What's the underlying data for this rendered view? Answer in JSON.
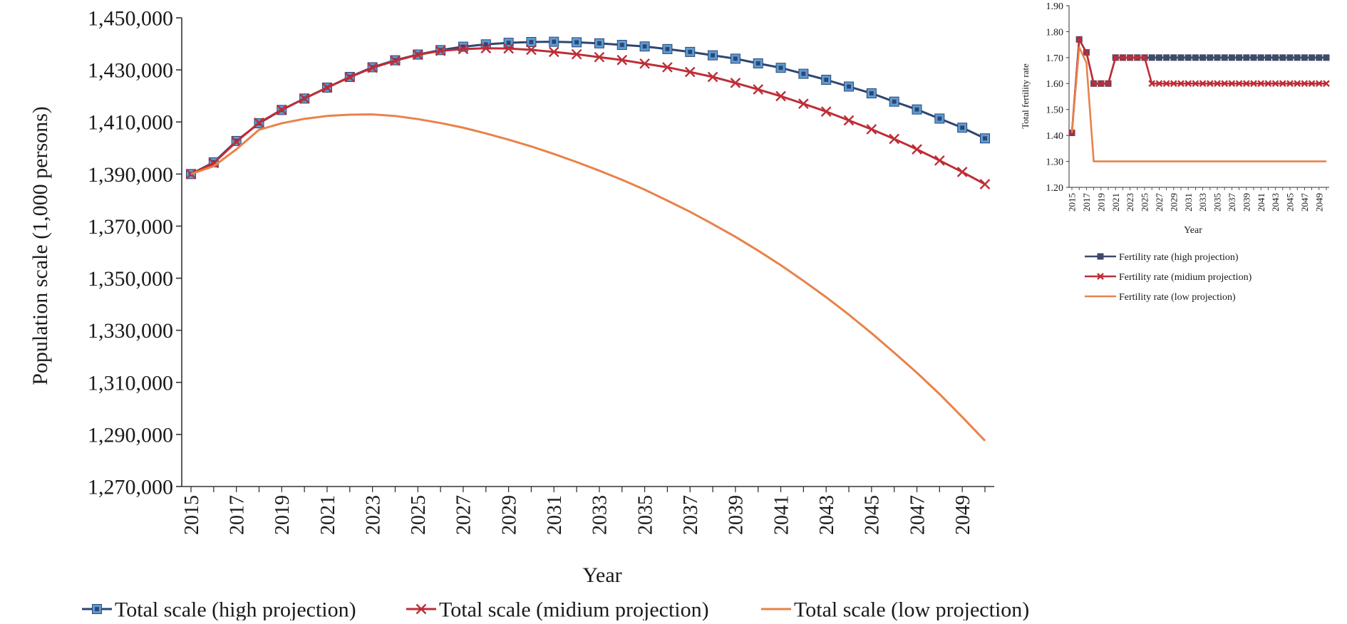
{
  "chart_data": [
    {
      "type": "line",
      "title": "",
      "xlabel": "Year",
      "ylabel": "Population scale (1,000 persons)",
      "ylim": [
        1270000,
        1450000
      ],
      "y_ticks": [
        "1,270,000",
        "1,290,000",
        "1,310,000",
        "1,330,000",
        "1,350,000",
        "1,370,000",
        "1,390,000",
        "1,410,000",
        "1,430,000",
        "1,450,000"
      ],
      "x_tick_labels": [
        "2015",
        "2017",
        "2019",
        "2021",
        "2023",
        "2025",
        "2027",
        "2029",
        "2031",
        "2033",
        "2035",
        "2037",
        "2039",
        "2041",
        "2043",
        "2045",
        "2047",
        "2049"
      ],
      "x": [
        2015,
        2016,
        2017,
        2018,
        2019,
        2020,
        2021,
        2022,
        2023,
        2024,
        2025,
        2026,
        2027,
        2028,
        2029,
        2030,
        2031,
        2032,
        2033,
        2034,
        2035,
        2036,
        2037,
        2038,
        2039,
        2040,
        2041,
        2042,
        2043,
        2044,
        2045,
        2046,
        2047,
        2048,
        2049,
        2050
      ],
      "legend_position": "bottom",
      "grid": false,
      "series": [
        {
          "name": "Total scale (high projection)",
          "color": "#2f4670",
          "marker_color": "#5b9bd5",
          "marker": "square",
          "values": [
            1390000,
            1394500,
            1402700,
            1409500,
            1414600,
            1419000,
            1423200,
            1427300,
            1431000,
            1433700,
            1435900,
            1437600,
            1438900,
            1439800,
            1440400,
            1440700,
            1440800,
            1440600,
            1440200,
            1439600,
            1439000,
            1438000,
            1436900,
            1435600,
            1434300,
            1432500,
            1430800,
            1428500,
            1426200,
            1423600,
            1421000,
            1417800,
            1414800,
            1411300,
            1407800,
            1403700
          ]
        },
        {
          "name": "Total scale (midium projection)",
          "color": "#be2d37",
          "marker": "x",
          "values": [
            1390000,
            1394200,
            1402400,
            1409700,
            1414700,
            1419000,
            1423200,
            1427200,
            1430800,
            1433500,
            1435800,
            1437300,
            1438000,
            1438300,
            1438200,
            1437700,
            1436900,
            1436000,
            1434900,
            1433800,
            1432400,
            1431000,
            1429200,
            1427300,
            1425000,
            1422500,
            1419900,
            1417000,
            1414000,
            1410600,
            1407200,
            1403500,
            1399500,
            1395200,
            1390800,
            1386100
          ]
        },
        {
          "name": "Total scale (low projection)",
          "color": "#e8824a",
          "marker": "none",
          "values": [
            1390000,
            1393000,
            1399500,
            1407000,
            1409500,
            1411200,
            1412300,
            1412800,
            1412900,
            1412300,
            1411100,
            1409600,
            1407800,
            1405600,
            1403200,
            1400600,
            1397700,
            1394600,
            1391300,
            1387800,
            1384000,
            1379800,
            1375500,
            1370800,
            1365900,
            1360600,
            1355000,
            1349000,
            1342700,
            1336000,
            1328900,
            1321400,
            1313700,
            1305500,
            1296700,
            1287600
          ]
        }
      ]
    },
    {
      "type": "line",
      "title": "",
      "xlabel": "Year",
      "ylabel": "Total fertility rate",
      "ylim": [
        1.2,
        1.9
      ],
      "y_ticks": [
        "1.20",
        "1.30",
        "1.40",
        "1.50",
        "1.60",
        "1.70",
        "1.80",
        "1.90"
      ],
      "x_tick_labels": [
        "2015",
        "2017",
        "2019",
        "2021",
        "2023",
        "2025",
        "2027",
        "2029",
        "2031",
        "2033",
        "2035",
        "2037",
        "2039",
        "2041",
        "2043",
        "2045",
        "2047",
        "2049"
      ],
      "x": [
        2015,
        2016,
        2017,
        2018,
        2019,
        2020,
        2021,
        2022,
        2023,
        2024,
        2025,
        2026,
        2027,
        2028,
        2029,
        2030,
        2031,
        2032,
        2033,
        2034,
        2035,
        2036,
        2037,
        2038,
        2039,
        2040,
        2041,
        2042,
        2043,
        2044,
        2045,
        2046,
        2047,
        2048,
        2049,
        2050
      ],
      "legend_position": "bottom",
      "grid": false,
      "series": [
        {
          "name": "Fertility rate (high projection)",
          "color": "#3d4a6b",
          "marker": "square",
          "values": [
            1.41,
            1.77,
            1.72,
            1.6,
            1.6,
            1.6,
            1.7,
            1.7,
            1.7,
            1.7,
            1.7,
            1.7,
            1.7,
            1.7,
            1.7,
            1.7,
            1.7,
            1.7,
            1.7,
            1.7,
            1.7,
            1.7,
            1.7,
            1.7,
            1.7,
            1.7,
            1.7,
            1.7,
            1.7,
            1.7,
            1.7,
            1.7,
            1.7,
            1.7,
            1.7,
            1.7
          ]
        },
        {
          "name": "Fertility rate (midium projection)",
          "color": "#be2d37",
          "marker": "x",
          "values": [
            1.41,
            1.77,
            1.72,
            1.6,
            1.6,
            1.6,
            1.7,
            1.7,
            1.7,
            1.7,
            1.7,
            1.6,
            1.6,
            1.6,
            1.6,
            1.6,
            1.6,
            1.6,
            1.6,
            1.6,
            1.6,
            1.6,
            1.6,
            1.6,
            1.6,
            1.6,
            1.6,
            1.6,
            1.6,
            1.6,
            1.6,
            1.6,
            1.6,
            1.6,
            1.6,
            1.6
          ]
        },
        {
          "name": "Fertility rate (low projection)",
          "color": "#e8824a",
          "marker": "none",
          "values": [
            1.41,
            1.74,
            1.68,
            1.3,
            1.3,
            1.3,
            1.3,
            1.3,
            1.3,
            1.3,
            1.3,
            1.3,
            1.3,
            1.3,
            1.3,
            1.3,
            1.3,
            1.3,
            1.3,
            1.3,
            1.3,
            1.3,
            1.3,
            1.3,
            1.3,
            1.3,
            1.3,
            1.3,
            1.3,
            1.3,
            1.3,
            1.3,
            1.3,
            1.3,
            1.3,
            1.3
          ]
        }
      ]
    }
  ]
}
